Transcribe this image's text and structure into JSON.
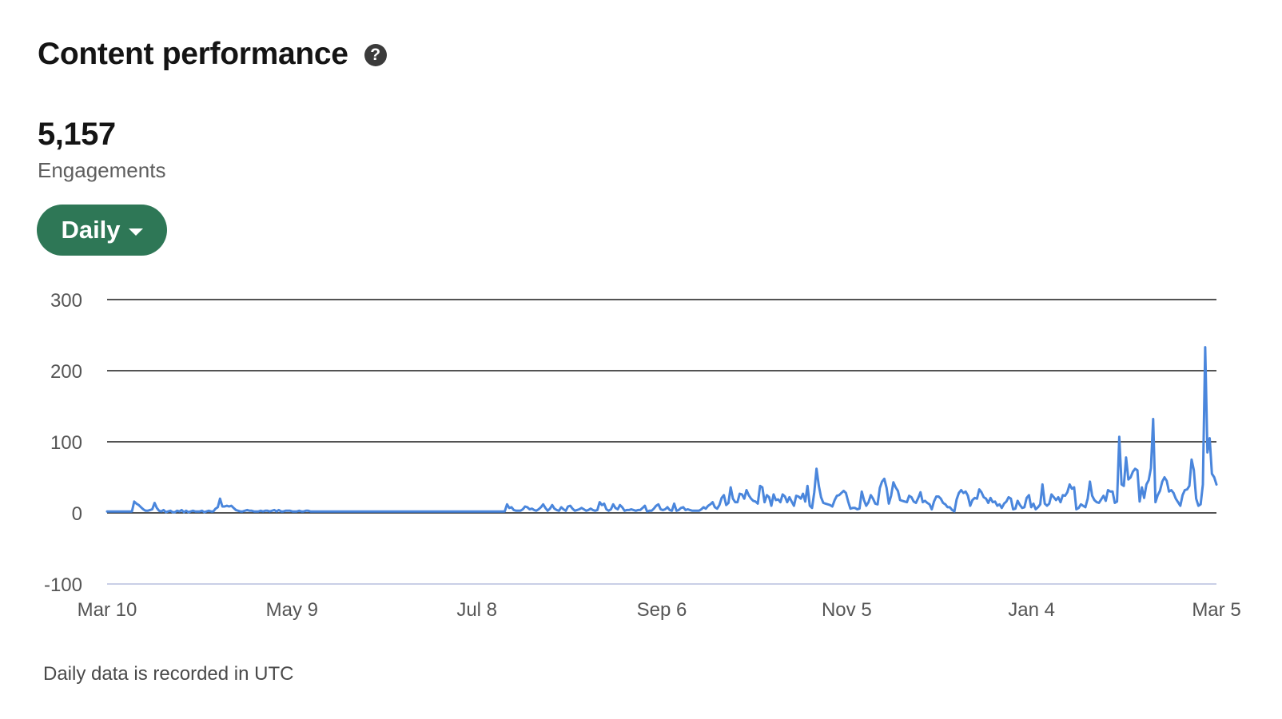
{
  "header": {
    "title": "Content performance",
    "help_icon": "question-circle-icon"
  },
  "metric": {
    "value": "5,157",
    "label": "Engagements"
  },
  "filter": {
    "selected": "Daily",
    "icon": "caret-down-icon"
  },
  "footnote": "Daily data is recorded in UTC",
  "colors": {
    "line": "#4a86dc",
    "accent": "#2e7756"
  },
  "chart_data": {
    "type": "line",
    "xlabel": "",
    "ylabel": "",
    "ylim": [
      -100,
      300
    ],
    "yticks": [
      -100,
      0,
      100,
      200,
      300
    ],
    "ytick_labels": [
      "-100",
      "0",
      "100",
      "200",
      "300"
    ],
    "x_range": [
      "Mar 10",
      "Mar 5"
    ],
    "xtick_labels": [
      "Mar 10",
      "May 9",
      "Jul 8",
      "Sep 6",
      "Nov 5",
      "Jan 4",
      "Mar 5"
    ],
    "grid": true,
    "legend": "none",
    "series": [
      {
        "values": [
          2,
          2,
          2,
          2,
          2,
          2,
          2,
          2,
          2,
          2,
          2,
          2,
          16,
          13,
          11,
          8,
          5,
          3,
          3,
          4,
          5,
          14,
          7,
          3,
          2,
          4,
          1,
          2,
          3,
          1,
          1,
          3,
          2,
          4,
          1,
          3,
          1,
          2,
          3,
          2,
          2,
          2,
          3,
          1,
          2,
          3,
          2,
          2,
          6,
          8,
          20,
          9,
          9,
          10,
          9,
          10,
          7,
          4,
          3,
          2,
          2,
          3,
          4,
          3,
          3,
          2,
          2,
          2,
          3,
          2,
          3,
          3,
          2,
          3,
          4,
          2,
          4,
          2,
          2,
          3,
          3,
          3,
          2,
          2,
          2,
          3,
          2,
          2,
          3,
          3,
          2,
          2,
          2,
          2,
          2,
          2,
          2,
          2,
          2,
          2,
          2,
          2,
          2,
          2,
          2,
          2,
          2,
          2,
          2,
          2,
          2,
          2,
          2,
          2,
          2,
          2,
          2,
          2,
          2,
          2,
          2,
          2,
          2,
          2,
          2,
          2,
          2,
          2,
          2,
          2,
          2,
          2,
          2,
          2,
          2,
          2,
          2,
          2,
          2,
          2,
          2,
          2,
          2,
          2,
          2,
          2,
          2,
          2,
          2,
          2,
          2,
          2,
          2,
          2,
          2,
          2,
          2,
          2,
          2,
          2,
          2,
          2,
          2,
          2,
          2,
          2,
          2,
          2,
          2,
          2,
          2,
          2,
          2,
          2,
          2,
          2,
          2,
          12,
          7,
          8,
          4,
          3,
          3,
          3,
          5,
          9,
          8,
          5,
          6,
          4,
          3,
          5,
          8,
          12,
          7,
          3,
          6,
          11,
          6,
          4,
          3,
          8,
          5,
          3,
          9,
          10,
          6,
          3,
          4,
          5,
          7,
          5,
          3,
          4,
          6,
          4,
          3,
          4,
          15,
          11,
          13,
          5,
          3,
          5,
          12,
          7,
          5,
          11,
          8,
          3,
          4,
          4,
          5,
          4,
          3,
          4,
          4,
          7,
          10,
          2,
          3,
          3,
          6,
          10,
          12,
          5,
          4,
          5,
          8,
          4,
          3,
          13,
          3,
          4,
          7,
          8,
          4,
          5,
          4,
          3,
          3,
          3,
          3,
          5,
          8,
          6,
          10,
          12,
          15,
          8,
          6,
          11,
          21,
          25,
          11,
          14,
          36,
          20,
          15,
          15,
          27,
          26,
          20,
          32,
          25,
          20,
          17,
          16,
          13,
          38,
          36,
          15,
          25,
          22,
          10,
          26,
          18,
          19,
          15,
          26,
          23,
          15,
          22,
          16,
          10,
          24,
          23,
          20,
          27,
          16,
          38,
          10,
          7,
          29,
          62,
          38,
          22,
          14,
          13,
          12,
          11,
          9,
          18,
          24,
          25,
          28,
          31,
          28,
          16,
          6,
          7,
          7,
          5,
          6,
          30,
          18,
          10,
          15,
          25,
          20,
          13,
          12,
          35,
          44,
          48,
          35,
          13,
          24,
          43,
          36,
          31,
          18,
          17,
          16,
          15,
          24,
          22,
          16,
          14,
          21,
          29,
          15,
          17,
          14,
          12,
          5,
          16,
          23,
          23,
          20,
          14,
          12,
          8,
          8,
          4,
          2,
          19,
          28,
          32,
          28,
          30,
          24,
          10,
          18,
          21,
          20,
          33,
          29,
          22,
          20,
          14,
          21,
          15,
          16,
          10,
          12,
          7,
          13,
          16,
          22,
          20,
          5,
          6,
          17,
          11,
          7,
          8,
          21,
          25,
          8,
          13,
          5,
          8,
          12,
          40,
          13,
          10,
          13,
          26,
          22,
          18,
          22,
          15,
          25,
          24,
          29,
          40,
          34,
          36,
          5,
          7,
          12,
          10,
          8,
          20,
          44,
          24,
          18,
          15,
          14,
          19,
          24,
          17,
          32,
          30,
          30,
          14,
          16,
          107,
          40,
          38,
          78,
          47,
          50,
          58,
          62,
          60,
          16,
          36,
          21,
          40,
          46,
          63,
          132,
          15,
          25,
          31,
          44,
          50,
          45,
          30,
          32,
          28,
          20,
          15,
          10,
          25,
          32,
          33,
          38,
          75,
          60,
          20,
          10,
          12,
          40,
          233,
          85,
          105,
          55,
          50,
          40
        ]
      }
    ]
  }
}
